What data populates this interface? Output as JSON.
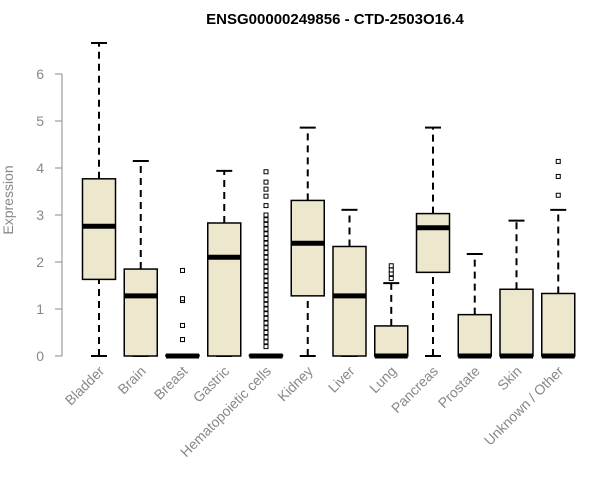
{
  "chart_data": {
    "type": "boxplot",
    "title": "ENSG00000249856 - CTD-2503O16.4",
    "ylabel": "Expression",
    "xlabel": "",
    "ylim": [
      0,
      6.9
    ],
    "yticks": [
      0,
      1,
      2,
      3,
      4,
      5,
      6
    ],
    "box_fill": "#ede7ce",
    "categories": [
      "Bladder",
      "Brain",
      "Breast",
      "Gastric",
      "Hematopoietic cells",
      "Kidney",
      "Liver",
      "Lung",
      "Pancreas",
      "Prostate",
      "Skin",
      "Unknown / Other"
    ],
    "boxes": [
      {
        "whisker_low": 0.0,
        "q1": 1.63,
        "median": 2.76,
        "q3": 3.77,
        "whisker_high": 6.66,
        "outliers": []
      },
      {
        "whisker_low": 0.0,
        "q1": 0.0,
        "median": 1.28,
        "q3": 1.85,
        "whisker_high": 4.15,
        "outliers": []
      },
      {
        "whisker_low": 0.0,
        "q1": 0.0,
        "median": 0.0,
        "q3": 0.02,
        "whisker_high": 0.02,
        "outliers": [
          0.35,
          0.65,
          1.18,
          1.22,
          1.82
        ]
      },
      {
        "whisker_low": 0.0,
        "q1": 0.0,
        "median": 2.1,
        "q3": 2.83,
        "whisker_high": 3.94,
        "outliers": []
      },
      {
        "whisker_low": 0.0,
        "q1": 0.0,
        "median": 0.0,
        "q3": 0.02,
        "whisker_high": 0.02,
        "outliers": [
          0.2,
          0.3,
          0.4,
          0.5,
          0.6,
          0.7,
          0.8,
          0.9,
          1.0,
          1.1,
          1.2,
          1.3,
          1.4,
          1.5,
          1.6,
          1.7,
          1.8,
          1.9,
          2.0,
          2.1,
          2.2,
          2.3,
          2.4,
          2.5,
          2.6,
          2.7,
          2.8,
          2.9,
          3.0,
          3.2,
          3.4,
          3.55,
          3.7,
          3.92
        ]
      },
      {
        "whisker_low": 0.0,
        "q1": 1.28,
        "median": 2.4,
        "q3": 3.31,
        "whisker_high": 4.86,
        "outliers": []
      },
      {
        "whisker_low": 0.0,
        "q1": 0.0,
        "median": 1.28,
        "q3": 2.33,
        "whisker_high": 3.11,
        "outliers": []
      },
      {
        "whisker_low": 0.0,
        "q1": 0.0,
        "median": 0.0,
        "q3": 0.64,
        "whisker_high": 1.55,
        "outliers": [
          1.65,
          1.75,
          1.83,
          1.92
        ]
      },
      {
        "whisker_low": 0.0,
        "q1": 1.78,
        "median": 2.73,
        "q3": 3.03,
        "whisker_high": 4.86,
        "outliers": []
      },
      {
        "whisker_low": 0.0,
        "q1": 0.0,
        "median": 0.0,
        "q3": 0.88,
        "whisker_high": 2.17,
        "outliers": []
      },
      {
        "whisker_low": 0.0,
        "q1": 0.0,
        "median": 0.0,
        "q3": 1.42,
        "whisker_high": 2.88,
        "outliers": []
      },
      {
        "whisker_low": 0.0,
        "q1": 0.0,
        "median": 0.0,
        "q3": 1.33,
        "whisker_high": 3.11,
        "outliers": [
          3.42,
          3.82,
          4.14
        ]
      }
    ]
  }
}
